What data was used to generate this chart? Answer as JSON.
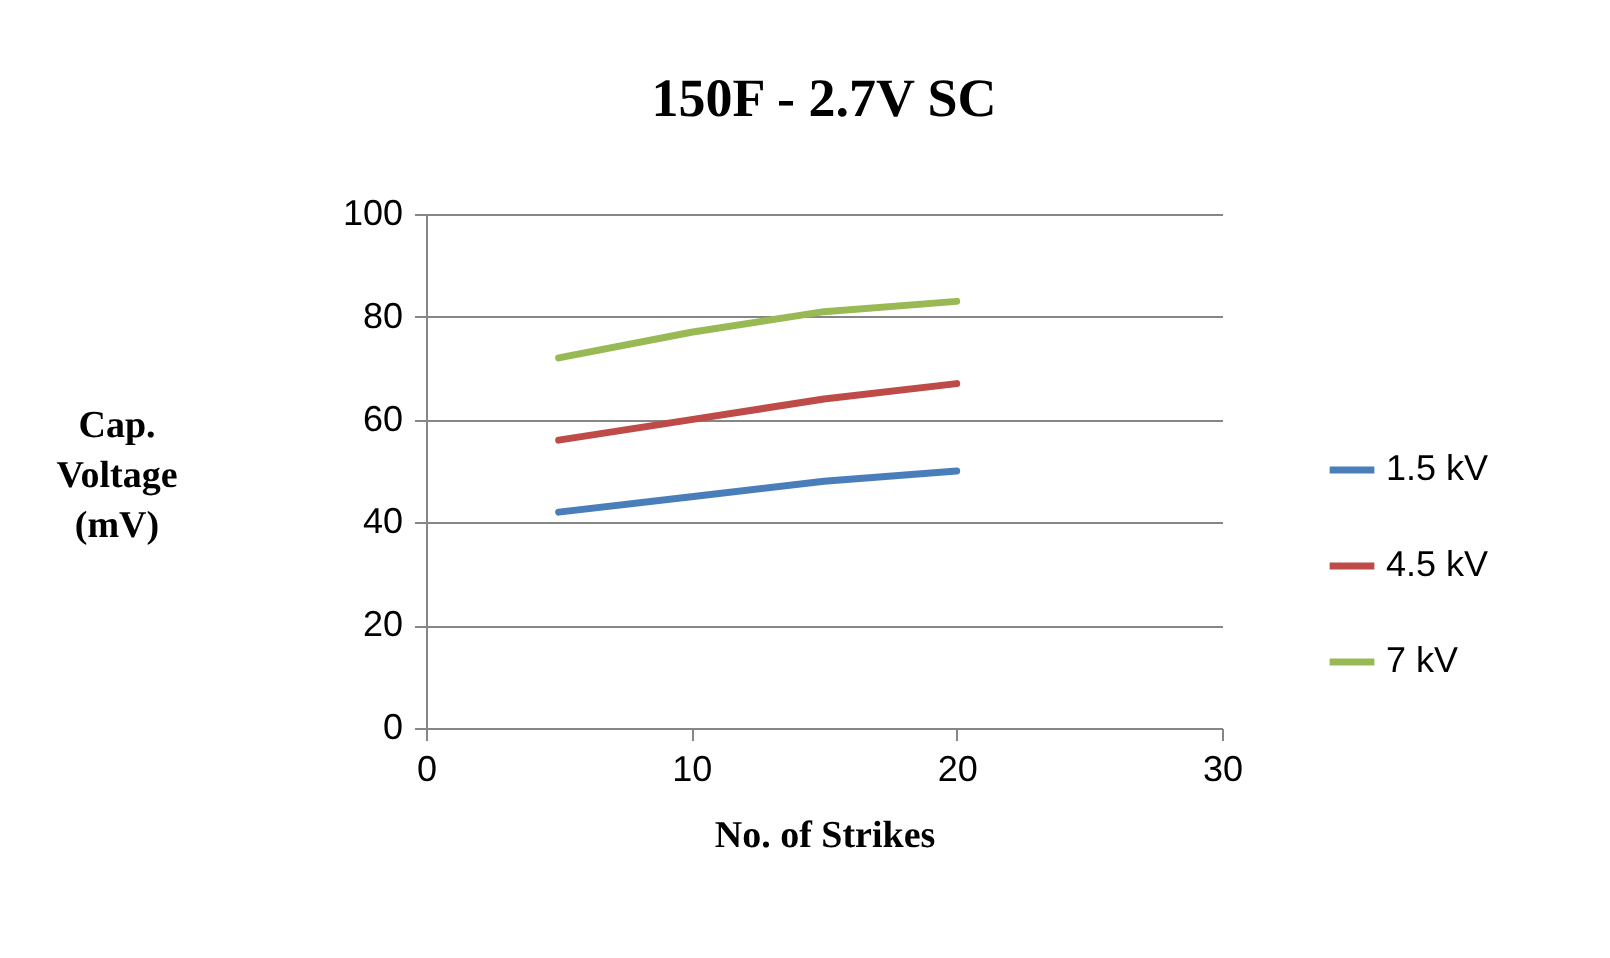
{
  "chart_data": {
    "type": "line",
    "title": "150F - 2.7V SC",
    "xlabel": "No. of Strikes",
    "ylabel": "Cap. Voltage (mV)",
    "x": [
      5,
      10,
      15,
      20
    ],
    "series": [
      {
        "name": "1.5 kV",
        "color": "#4a7ebb",
        "values": [
          42,
          45,
          48,
          50
        ]
      },
      {
        "name": "4.5 kV",
        "color": "#be4b48",
        "values": [
          56,
          60,
          64,
          67
        ]
      },
      {
        "name": "7 kV",
        "color": "#98b954",
        "values": [
          72,
          77,
          81,
          83
        ]
      }
    ],
    "xlim": [
      0,
      30
    ],
    "xticks": [
      0,
      10,
      20,
      30
    ],
    "ylim": [
      0,
      100
    ],
    "yticks": [
      0,
      20,
      40,
      60,
      80,
      100
    ],
    "grid": "y",
    "legend": "right",
    "marker": "none",
    "line_style": "solid"
  }
}
